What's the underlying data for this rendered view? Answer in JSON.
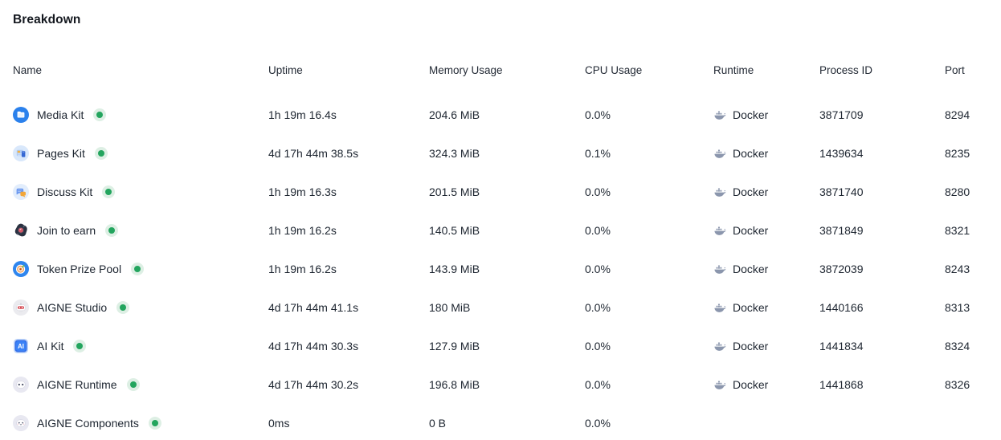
{
  "page": {
    "title": "Breakdown"
  },
  "colors": {
    "status_running": "#23a55e",
    "status_halo": "#ddefe4",
    "docker_icon": "#8b96ad",
    "text": "#1d2530"
  },
  "table": {
    "columns": [
      {
        "key": "name",
        "label": "Name"
      },
      {
        "key": "uptime",
        "label": "Uptime"
      },
      {
        "key": "memory",
        "label": "Memory Usage"
      },
      {
        "key": "cpu",
        "label": "CPU Usage"
      },
      {
        "key": "runtime",
        "label": "Runtime"
      },
      {
        "key": "pid",
        "label": "Process ID"
      },
      {
        "key": "port",
        "label": "Port"
      }
    ],
    "rows": [
      {
        "name": "Media Kit",
        "icon": "media-kit-icon",
        "status": "running",
        "uptime": "1h 19m 16.4s",
        "memory": "204.6 MiB",
        "cpu": "0.0%",
        "runtime": "Docker",
        "runtime_icon": "docker-icon",
        "pid": "3871709",
        "port": "8294"
      },
      {
        "name": "Pages Kit",
        "icon": "pages-kit-icon",
        "status": "running",
        "uptime": "4d 17h 44m 38.5s",
        "memory": "324.3 MiB",
        "cpu": "0.1%",
        "runtime": "Docker",
        "runtime_icon": "docker-icon",
        "pid": "1439634",
        "port": "8235"
      },
      {
        "name": "Discuss Kit",
        "icon": "discuss-kit-icon",
        "status": "running",
        "uptime": "1h 19m 16.3s",
        "memory": "201.5 MiB",
        "cpu": "0.0%",
        "runtime": "Docker",
        "runtime_icon": "docker-icon",
        "pid": "3871740",
        "port": "8280"
      },
      {
        "name": "Join to earn",
        "icon": "join-to-earn-icon",
        "status": "running",
        "uptime": "1h 19m 16.2s",
        "memory": "140.5 MiB",
        "cpu": "0.0%",
        "runtime": "Docker",
        "runtime_icon": "docker-icon",
        "pid": "3871849",
        "port": "8321"
      },
      {
        "name": "Token Prize Pool",
        "icon": "token-prize-pool-icon",
        "status": "running",
        "uptime": "1h 19m 16.2s",
        "memory": "143.9 MiB",
        "cpu": "0.0%",
        "runtime": "Docker",
        "runtime_icon": "docker-icon",
        "pid": "3872039",
        "port": "8243"
      },
      {
        "name": "AIGNE Studio",
        "icon": "aigne-studio-icon",
        "status": "running",
        "uptime": "4d 17h 44m 41.1s",
        "memory": "180 MiB",
        "cpu": "0.0%",
        "runtime": "Docker",
        "runtime_icon": "docker-icon",
        "pid": "1440166",
        "port": "8313"
      },
      {
        "name": "AI Kit",
        "icon": "ai-kit-icon",
        "status": "running",
        "uptime": "4d 17h 44m 30.3s",
        "memory": "127.9 MiB",
        "cpu": "0.0%",
        "runtime": "Docker",
        "runtime_icon": "docker-icon",
        "pid": "1441834",
        "port": "8324"
      },
      {
        "name": "AIGNE Runtime",
        "icon": "aigne-runtime-icon",
        "status": "running",
        "uptime": "4d 17h 44m 30.2s",
        "memory": "196.8 MiB",
        "cpu": "0.0%",
        "runtime": "Docker",
        "runtime_icon": "docker-icon",
        "pid": "1441868",
        "port": "8326"
      },
      {
        "name": "AIGNE Components",
        "icon": "aigne-components-icon",
        "status": "running",
        "uptime": "0ms",
        "memory": "0 B",
        "cpu": "0.0%",
        "runtime": "",
        "runtime_icon": "",
        "pid": "",
        "port": ""
      }
    ]
  }
}
